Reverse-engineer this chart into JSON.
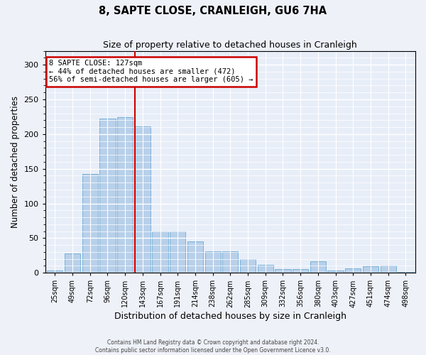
{
  "title": "8, SAPTE CLOSE, CRANLEIGH, GU6 7HA",
  "subtitle": "Size of property relative to detached houses in Cranleigh",
  "xlabel": "Distribution of detached houses by size in Cranleigh",
  "ylabel": "Number of detached properties",
  "bar_color": "#b8d0ea",
  "bar_edge_color": "#6aaad4",
  "background_color": "#e8eef8",
  "grid_color": "#ffffff",
  "categories": [
    "25sqm",
    "49sqm",
    "72sqm",
    "96sqm",
    "120sqm",
    "143sqm",
    "167sqm",
    "191sqm",
    "214sqm",
    "238sqm",
    "262sqm",
    "285sqm",
    "309sqm",
    "332sqm",
    "356sqm",
    "380sqm",
    "403sqm",
    "427sqm",
    "451sqm",
    "474sqm",
    "498sqm"
  ],
  "values": [
    3,
    28,
    142,
    222,
    224,
    211,
    60,
    60,
    45,
    31,
    31,
    20,
    11,
    5,
    5,
    17,
    3,
    6,
    9,
    10,
    1
  ],
  "ylim": [
    0,
    320
  ],
  "yticks": [
    0,
    50,
    100,
    150,
    200,
    250,
    300
  ],
  "red_line_x": 4.57,
  "annotation_text": "8 SAPTE CLOSE: 127sqm\n← 44% of detached houses are smaller (472)\n56% of semi-detached houses are larger (605) →",
  "annotation_box_color": "#ffffff",
  "annotation_box_edge": "#cc0000",
  "red_line_color": "#cc0000",
  "footer1": "Contains HM Land Registry data © Crown copyright and database right 2024.",
  "footer2": "Contains public sector information licensed under the Open Government Licence v3.0."
}
